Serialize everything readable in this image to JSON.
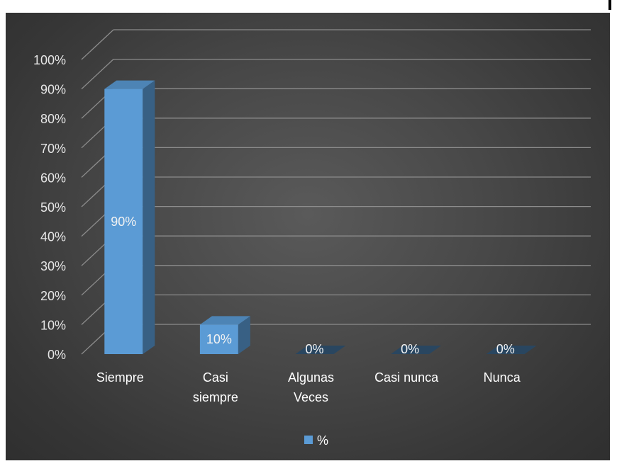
{
  "chart_data": {
    "type": "bar",
    "three_d": true,
    "categories": [
      "Siempre",
      "Casi siempre",
      "Algunas Veces",
      "Casi nunca",
      "Nunca"
    ],
    "category_lines": [
      [
        "Siempre"
      ],
      [
        "Casi",
        "siempre"
      ],
      [
        "Algunas",
        "Veces"
      ],
      [
        "Casi nunca"
      ],
      [
        "Nunca"
      ]
    ],
    "series": [
      {
        "name": "%",
        "values": [
          90,
          10,
          0,
          0,
          0
        ],
        "labels": [
          "90%",
          "10%",
          "0%",
          "0%",
          "0%"
        ],
        "color": "#5b9bd5"
      }
    ],
    "yticks": [
      "0%",
      "10%",
      "20%",
      "30%",
      "40%",
      "50%",
      "60%",
      "70%",
      "80%",
      "90%",
      "100%"
    ],
    "ylim": [
      0,
      100
    ],
    "grid": true,
    "legend": "bottom",
    "background": "#404040",
    "gridline_color": "#8c8c8c"
  }
}
